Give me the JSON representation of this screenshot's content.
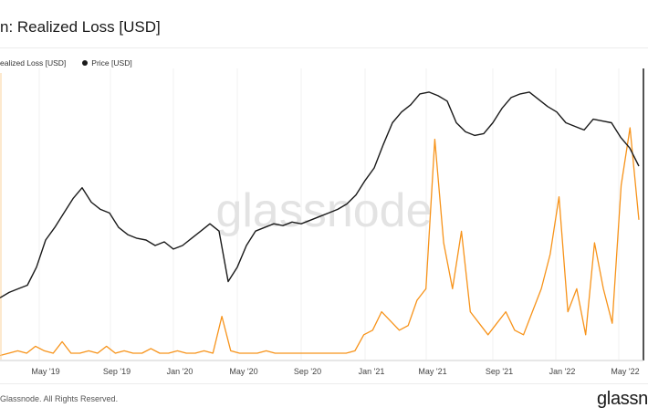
{
  "header": {
    "title": "n: Realized Loss [USD]"
  },
  "legend": {
    "items": [
      {
        "label": "ealized Loss [USD]",
        "color": "#f7931a"
      },
      {
        "label": "Price [USD]",
        "color": "#1a1a1a"
      }
    ]
  },
  "watermark": "glassnode",
  "footer": {
    "copyright": "Glassnode. All Rights Reserved.",
    "brand": "glassn"
  },
  "chart_data": {
    "type": "line",
    "x_tick_labels": [
      "May '19",
      "Sep '19",
      "Jan '20",
      "May '20",
      "Sep '20",
      "Jan '21",
      "May '21",
      "Sep '21",
      "Jan '22",
      "May '22"
    ],
    "series": [
      {
        "name": "Price [USD]",
        "color": "#1a1a1a",
        "relative_values": [
          0.13,
          0.16,
          0.18,
          0.2,
          0.3,
          0.45,
          0.52,
          0.6,
          0.68,
          0.74,
          0.66,
          0.62,
          0.6,
          0.52,
          0.48,
          0.46,
          0.45,
          0.42,
          0.44,
          0.4,
          0.42,
          0.46,
          0.5,
          0.54,
          0.5,
          0.22,
          0.3,
          0.42,
          0.5,
          0.52,
          0.54,
          0.53,
          0.55,
          0.54,
          0.56,
          0.58,
          0.6,
          0.62,
          0.65,
          0.7,
          0.78,
          0.85,
          0.98,
          1.1,
          1.16,
          1.2,
          1.26,
          1.27,
          1.25,
          1.22,
          1.1,
          1.05,
          1.03,
          1.04,
          1.1,
          1.18,
          1.24,
          1.26,
          1.27,
          1.23,
          1.19,
          1.16,
          1.1,
          1.08,
          1.06,
          1.12,
          1.11,
          1.1,
          1.02,
          0.96,
          0.86
        ],
        "notes": "Relative vertical level only (0 = lowest plotted, ~1.3 = highest); price axis values are not printed in the image."
      },
      {
        "name": "Realized Loss [USD]",
        "color": "#f7931a",
        "relative_values": [
          0.01,
          0.02,
          0.03,
          0.02,
          0.05,
          0.03,
          0.02,
          0.07,
          0.02,
          0.02,
          0.03,
          0.02,
          0.05,
          0.02,
          0.03,
          0.02,
          0.02,
          0.04,
          0.02,
          0.02,
          0.03,
          0.02,
          0.02,
          0.03,
          0.02,
          0.18,
          0.03,
          0.02,
          0.02,
          0.02,
          0.03,
          0.02,
          0.02,
          0.02,
          0.02,
          0.02,
          0.02,
          0.02,
          0.02,
          0.02,
          0.03,
          0.1,
          0.12,
          0.2,
          0.16,
          0.12,
          0.14,
          0.25,
          0.3,
          0.95,
          0.5,
          0.3,
          0.55,
          0.2,
          0.15,
          0.1,
          0.15,
          0.2,
          0.12,
          0.1,
          0.2,
          0.3,
          0.45,
          0.7,
          0.2,
          0.3,
          0.1,
          0.5,
          0.3,
          0.15,
          0.75,
          1.0,
          0.6
        ],
        "notes": "Relative height of spikes only; the loss axis values are not printed in the image."
      }
    ],
    "xlabel": "",
    "ylabel": "",
    "grid": true,
    "legend_position": "top-left"
  }
}
